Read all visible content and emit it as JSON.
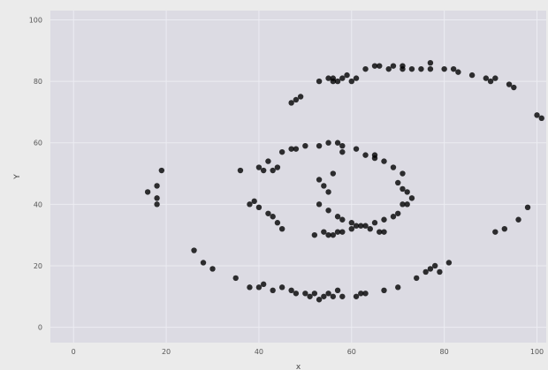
{
  "chart_data": {
    "type": "scatter",
    "xlabel": "x",
    "ylabel": "Y",
    "xlim": [
      -5,
      102
    ],
    "ylim": [
      -5,
      103
    ],
    "xticks": [
      0,
      20,
      40,
      60,
      80,
      100
    ],
    "yticks": [
      0,
      20,
      40,
      60,
      80,
      100
    ],
    "xtick_labels": [
      "0",
      "20",
      "40",
      "60",
      "80",
      "100"
    ],
    "ytick_labels": [
      "0",
      "20",
      "40",
      "60",
      "80",
      "100"
    ],
    "grid": true,
    "colors": {
      "plot_bg": "#dcdbe3",
      "page_bg": "#ebebeb",
      "grid": "#ececf2",
      "point": "#000000"
    },
    "points": [
      [
        65,
        85
      ],
      [
        66,
        85
      ],
      [
        69,
        85
      ],
      [
        71,
        85
      ],
      [
        73,
        84
      ],
      [
        75,
        84
      ],
      [
        77,
        84
      ],
      [
        77,
        86
      ],
      [
        71,
        84
      ],
      [
        68,
        84
      ],
      [
        63,
        84
      ],
      [
        80,
        84
      ],
      [
        82,
        84
      ],
      [
        83,
        83
      ],
      [
        86,
        82
      ],
      [
        89,
        81
      ],
      [
        90,
        80
      ],
      [
        91,
        81
      ],
      [
        94,
        79
      ],
      [
        95,
        78
      ],
      [
        53,
        80
      ],
      [
        55,
        81
      ],
      [
        56,
        81
      ],
      [
        57,
        80
      ],
      [
        58,
        81
      ],
      [
        59,
        82
      ],
      [
        60,
        80
      ],
      [
        56,
        80
      ],
      [
        61,
        81
      ],
      [
        48,
        74
      ],
      [
        49,
        75
      ],
      [
        47,
        73
      ],
      [
        100,
        69
      ],
      [
        101,
        68
      ],
      [
        19,
        51
      ],
      [
        18,
        46
      ],
      [
        16,
        44
      ],
      [
        18,
        42
      ],
      [
        18,
        40
      ],
      [
        103,
        44
      ],
      [
        98,
        39
      ],
      [
        96,
        35
      ],
      [
        93,
        32
      ],
      [
        91,
        31
      ],
      [
        26,
        25
      ],
      [
        28,
        21
      ],
      [
        30,
        19
      ],
      [
        35,
        16
      ],
      [
        38,
        13
      ],
      [
        40,
        13
      ],
      [
        41,
        14
      ],
      [
        43,
        12
      ],
      [
        45,
        13
      ],
      [
        47,
        12
      ],
      [
        48,
        11
      ],
      [
        50,
        11
      ],
      [
        51,
        10
      ],
      [
        52,
        11
      ],
      [
        54,
        10
      ],
      [
        56,
        10
      ],
      [
        57,
        12
      ],
      [
        55,
        11
      ],
      [
        53,
        9
      ],
      [
        58,
        10
      ],
      [
        61,
        10
      ],
      [
        62,
        11
      ],
      [
        63,
        11
      ],
      [
        67,
        12
      ],
      [
        70,
        13
      ],
      [
        74,
        16
      ],
      [
        76,
        18
      ],
      [
        77,
        19
      ],
      [
        78,
        20
      ],
      [
        79,
        18
      ],
      [
        81,
        21
      ],
      [
        45,
        57
      ],
      [
        47,
        58
      ],
      [
        48,
        58
      ],
      [
        50,
        59
      ],
      [
        53,
        59
      ],
      [
        55,
        60
      ],
      [
        57,
        60
      ],
      [
        58,
        59
      ],
      [
        61,
        58
      ],
      [
        63,
        56
      ],
      [
        65,
        55
      ],
      [
        67,
        54
      ],
      [
        69,
        52
      ],
      [
        71,
        50
      ],
      [
        65,
        56
      ],
      [
        58,
        57
      ],
      [
        36,
        51
      ],
      [
        40,
        52
      ],
      [
        41,
        51
      ],
      [
        43,
        51
      ],
      [
        44,
        52
      ],
      [
        42,
        54
      ],
      [
        70,
        47
      ],
      [
        71,
        45
      ],
      [
        72,
        44
      ],
      [
        73,
        42
      ],
      [
        72,
        40
      ],
      [
        53,
        48
      ],
      [
        56,
        50
      ],
      [
        54,
        46
      ],
      [
        55,
        44
      ],
      [
        53,
        40
      ],
      [
        55,
        38
      ],
      [
        57,
        36
      ],
      [
        58,
        35
      ],
      [
        60,
        34
      ],
      [
        62,
        33
      ],
      [
        64,
        32
      ],
      [
        66,
        31
      ],
      [
        67,
        31
      ],
      [
        38,
        40
      ],
      [
        39,
        41
      ],
      [
        40,
        39
      ],
      [
        42,
        37
      ],
      [
        43,
        36
      ],
      [
        44,
        34
      ],
      [
        45,
        32
      ],
      [
        52,
        30
      ],
      [
        54,
        31
      ],
      [
        55,
        30
      ],
      [
        56,
        30
      ],
      [
        57,
        31
      ],
      [
        58,
        31
      ],
      [
        60,
        32
      ],
      [
        61,
        33
      ],
      [
        63,
        33
      ],
      [
        65,
        34
      ],
      [
        67,
        35
      ],
      [
        69,
        36
      ],
      [
        70,
        37
      ],
      [
        71,
        40
      ]
    ]
  }
}
